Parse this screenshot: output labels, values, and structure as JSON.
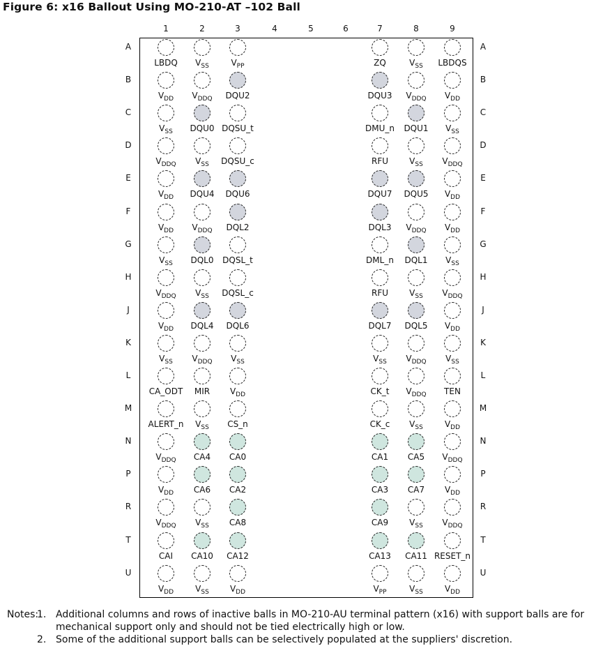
{
  "figure": {
    "title": "Figure 6: x16 Ballout Using MO-210-AT –102 Ball",
    "columns": [
      "1",
      "2",
      "3",
      "4",
      "5",
      "6",
      "7",
      "8",
      "9"
    ],
    "rows": [
      "A",
      "B",
      "C",
      "D",
      "E",
      "F",
      "G",
      "H",
      "J",
      "K",
      "L",
      "M",
      "N",
      "P",
      "R",
      "T",
      "U"
    ],
    "ball_fill_colors": {
      "dq": "#d3d6de",
      "ca": "#cfe6df",
      "none": "#ffffff"
    }
  },
  "balls": [
    {
      "row": "A",
      "col": 1,
      "label": "LBDQ",
      "fill": "none"
    },
    {
      "row": "A",
      "col": 2,
      "label": "V",
      "sub": "SS",
      "fill": "none"
    },
    {
      "row": "A",
      "col": 3,
      "label": "V",
      "sub": "PP",
      "fill": "none"
    },
    {
      "row": "A",
      "col": 7,
      "label": "ZQ",
      "fill": "none"
    },
    {
      "row": "A",
      "col": 8,
      "label": "V",
      "sub": "SS",
      "fill": "none"
    },
    {
      "row": "A",
      "col": 9,
      "label": "LBDQS",
      "fill": "none"
    },
    {
      "row": "B",
      "col": 1,
      "label": "V",
      "sub": "DD",
      "fill": "none"
    },
    {
      "row": "B",
      "col": 2,
      "label": "V",
      "sub": "DDQ",
      "fill": "none"
    },
    {
      "row": "B",
      "col": 3,
      "label": "DQU2",
      "fill": "dq"
    },
    {
      "row": "B",
      "col": 7,
      "label": "DQU3",
      "fill": "dq"
    },
    {
      "row": "B",
      "col": 8,
      "label": "V",
      "sub": "DDQ",
      "fill": "none"
    },
    {
      "row": "B",
      "col": 9,
      "label": "V",
      "sub": "DD",
      "fill": "none"
    },
    {
      "row": "C",
      "col": 1,
      "label": "V",
      "sub": "SS",
      "fill": "none"
    },
    {
      "row": "C",
      "col": 2,
      "label": "DQU0",
      "fill": "dq"
    },
    {
      "row": "C",
      "col": 3,
      "label": "DQSU_t",
      "fill": "none"
    },
    {
      "row": "C",
      "col": 7,
      "label": "DMU_n",
      "fill": "none"
    },
    {
      "row": "C",
      "col": 8,
      "label": "DQU1",
      "fill": "dq"
    },
    {
      "row": "C",
      "col": 9,
      "label": "V",
      "sub": "SS",
      "fill": "none"
    },
    {
      "row": "D",
      "col": 1,
      "label": "V",
      "sub": "DDQ",
      "fill": "none"
    },
    {
      "row": "D",
      "col": 2,
      "label": "V",
      "sub": "SS",
      "fill": "none"
    },
    {
      "row": "D",
      "col": 3,
      "label": "DQSU_c",
      "fill": "none"
    },
    {
      "row": "D",
      "col": 7,
      "label": "RFU",
      "fill": "none"
    },
    {
      "row": "D",
      "col": 8,
      "label": "V",
      "sub": "SS",
      "fill": "none"
    },
    {
      "row": "D",
      "col": 9,
      "label": "V",
      "sub": "DDQ",
      "fill": "none"
    },
    {
      "row": "E",
      "col": 1,
      "label": "V",
      "sub": "DD",
      "fill": "none"
    },
    {
      "row": "E",
      "col": 2,
      "label": "DQU4",
      "fill": "dq"
    },
    {
      "row": "E",
      "col": 3,
      "label": "DQU6",
      "fill": "dq"
    },
    {
      "row": "E",
      "col": 7,
      "label": "DQU7",
      "fill": "dq"
    },
    {
      "row": "E",
      "col": 8,
      "label": "DQU5",
      "fill": "dq"
    },
    {
      "row": "E",
      "col": 9,
      "label": "V",
      "sub": "DD",
      "fill": "none"
    },
    {
      "row": "F",
      "col": 1,
      "label": "V",
      "sub": "DD",
      "fill": "none"
    },
    {
      "row": "F",
      "col": 2,
      "label": "V",
      "sub": "DDQ",
      "fill": "none"
    },
    {
      "row": "F",
      "col": 3,
      "label": "DQL2",
      "fill": "dq"
    },
    {
      "row": "F",
      "col": 7,
      "label": "DQL3",
      "fill": "dq"
    },
    {
      "row": "F",
      "col": 8,
      "label": "V",
      "sub": "DDQ",
      "fill": "none"
    },
    {
      "row": "F",
      "col": 9,
      "label": "V",
      "sub": "DD",
      "fill": "none"
    },
    {
      "row": "G",
      "col": 1,
      "label": "V",
      "sub": "SS",
      "fill": "none"
    },
    {
      "row": "G",
      "col": 2,
      "label": "DQL0",
      "fill": "dq"
    },
    {
      "row": "G",
      "col": 3,
      "label": "DQSL_t",
      "fill": "none"
    },
    {
      "row": "G",
      "col": 7,
      "label": "DML_n",
      "fill": "none"
    },
    {
      "row": "G",
      "col": 8,
      "label": "DQL1",
      "fill": "dq"
    },
    {
      "row": "G",
      "col": 9,
      "label": "V",
      "sub": "SS",
      "fill": "none"
    },
    {
      "row": "H",
      "col": 1,
      "label": "V",
      "sub": "DDQ",
      "fill": "none"
    },
    {
      "row": "H",
      "col": 2,
      "label": "V",
      "sub": "SS",
      "fill": "none"
    },
    {
      "row": "H",
      "col": 3,
      "label": "DQSL_c",
      "fill": "none"
    },
    {
      "row": "H",
      "col": 7,
      "label": "RFU",
      "fill": "none"
    },
    {
      "row": "H",
      "col": 8,
      "label": "V",
      "sub": "SS",
      "fill": "none"
    },
    {
      "row": "H",
      "col": 9,
      "label": "V",
      "sub": "DDQ",
      "fill": "none"
    },
    {
      "row": "J",
      "col": 1,
      "label": "V",
      "sub": "DD",
      "fill": "none"
    },
    {
      "row": "J",
      "col": 2,
      "label": "DQL4",
      "fill": "dq"
    },
    {
      "row": "J",
      "col": 3,
      "label": "DQL6",
      "fill": "dq"
    },
    {
      "row": "J",
      "col": 7,
      "label": "DQL7",
      "fill": "dq"
    },
    {
      "row": "J",
      "col": 8,
      "label": "DQL5",
      "fill": "dq"
    },
    {
      "row": "J",
      "col": 9,
      "label": "V",
      "sub": "DD",
      "fill": "none"
    },
    {
      "row": "K",
      "col": 1,
      "label": "V",
      "sub": "SS",
      "fill": "none"
    },
    {
      "row": "K",
      "col": 2,
      "label": "V",
      "sub": "DDQ",
      "fill": "none"
    },
    {
      "row": "K",
      "col": 3,
      "label": "V",
      "sub": "SS",
      "fill": "none"
    },
    {
      "row": "K",
      "col": 7,
      "label": "V",
      "sub": "SS",
      "fill": "none"
    },
    {
      "row": "K",
      "col": 8,
      "label": "V",
      "sub": "DDQ",
      "fill": "none"
    },
    {
      "row": "K",
      "col": 9,
      "label": "V",
      "sub": "SS",
      "fill": "none"
    },
    {
      "row": "L",
      "col": 1,
      "label": "CA_ODT",
      "fill": "none"
    },
    {
      "row": "L",
      "col": 2,
      "label": "MIR",
      "fill": "none"
    },
    {
      "row": "L",
      "col": 3,
      "label": "V",
      "sub": "DD",
      "fill": "none"
    },
    {
      "row": "L",
      "col": 7,
      "label": "CK_t",
      "fill": "none"
    },
    {
      "row": "L",
      "col": 8,
      "label": "V",
      "sub": "DDQ",
      "fill": "none"
    },
    {
      "row": "L",
      "col": 9,
      "label": "TEN",
      "fill": "none"
    },
    {
      "row": "M",
      "col": 1,
      "label": "ALERT_n",
      "fill": "none"
    },
    {
      "row": "M",
      "col": 2,
      "label": "V",
      "sub": "SS",
      "fill": "none"
    },
    {
      "row": "M",
      "col": 3,
      "label": "CS_n",
      "fill": "none"
    },
    {
      "row": "M",
      "col": 7,
      "label": "CK_c",
      "fill": "none"
    },
    {
      "row": "M",
      "col": 8,
      "label": "V",
      "sub": "SS",
      "fill": "none"
    },
    {
      "row": "M",
      "col": 9,
      "label": "V",
      "sub": "DD",
      "fill": "none"
    },
    {
      "row": "N",
      "col": 1,
      "label": "V",
      "sub": "DDQ",
      "fill": "none"
    },
    {
      "row": "N",
      "col": 2,
      "label": "CA4",
      "fill": "ca"
    },
    {
      "row": "N",
      "col": 3,
      "label": "CA0",
      "fill": "ca"
    },
    {
      "row": "N",
      "col": 7,
      "label": "CA1",
      "fill": "ca"
    },
    {
      "row": "N",
      "col": 8,
      "label": "CA5",
      "fill": "ca"
    },
    {
      "row": "N",
      "col": 9,
      "label": "V",
      "sub": "DDQ",
      "fill": "none"
    },
    {
      "row": "P",
      "col": 1,
      "label": "V",
      "sub": "DD",
      "fill": "none"
    },
    {
      "row": "P",
      "col": 2,
      "label": "CA6",
      "fill": "ca"
    },
    {
      "row": "P",
      "col": 3,
      "label": "CA2",
      "fill": "ca"
    },
    {
      "row": "P",
      "col": 7,
      "label": "CA3",
      "fill": "ca"
    },
    {
      "row": "P",
      "col": 8,
      "label": "CA7",
      "fill": "ca"
    },
    {
      "row": "P",
      "col": 9,
      "label": "V",
      "sub": "DD",
      "fill": "none"
    },
    {
      "row": "R",
      "col": 1,
      "label": "V",
      "sub": "DDQ",
      "fill": "none"
    },
    {
      "row": "R",
      "col": 2,
      "label": "V",
      "sub": "SS",
      "fill": "none"
    },
    {
      "row": "R",
      "col": 3,
      "label": "CA8",
      "fill": "ca"
    },
    {
      "row": "R",
      "col": 7,
      "label": "CA9",
      "fill": "ca"
    },
    {
      "row": "R",
      "col": 8,
      "label": "V",
      "sub": "SS",
      "fill": "none"
    },
    {
      "row": "R",
      "col": 9,
      "label": "V",
      "sub": "DDQ",
      "fill": "none"
    },
    {
      "row": "T",
      "col": 1,
      "label": "CAI",
      "fill": "none"
    },
    {
      "row": "T",
      "col": 2,
      "label": "CA10",
      "fill": "ca"
    },
    {
      "row": "T",
      "col": 3,
      "label": "CA12",
      "fill": "ca"
    },
    {
      "row": "T",
      "col": 7,
      "label": "CA13",
      "fill": "ca"
    },
    {
      "row": "T",
      "col": 8,
      "label": "CA11",
      "fill": "ca"
    },
    {
      "row": "T",
      "col": 9,
      "label": "RESET_n",
      "fill": "none"
    },
    {
      "row": "U",
      "col": 1,
      "label": "V",
      "sub": "DD",
      "fill": "none"
    },
    {
      "row": "U",
      "col": 2,
      "label": "V",
      "sub": "SS",
      "fill": "none"
    },
    {
      "row": "U",
      "col": 3,
      "label": "V",
      "sub": "DD",
      "fill": "none"
    },
    {
      "row": "U",
      "col": 7,
      "label": "V",
      "sub": "PP",
      "fill": "none"
    },
    {
      "row": "U",
      "col": 8,
      "label": "V",
      "sub": "SS",
      "fill": "none"
    },
    {
      "row": "U",
      "col": 9,
      "label": "V",
      "sub": "DD",
      "fill": "none"
    }
  ],
  "notes": {
    "prefix": "Notes:",
    "items": [
      {
        "num": "1.",
        "text": "Additional columns and rows of inactive balls in MO-210-AU terminal pattern (x16) with support balls are for mechanical support only and should not be tied electrically high or low."
      },
      {
        "num": "2.",
        "text": "Some of the additional support balls can be selectively populated at the suppliers' discretion."
      }
    ]
  }
}
